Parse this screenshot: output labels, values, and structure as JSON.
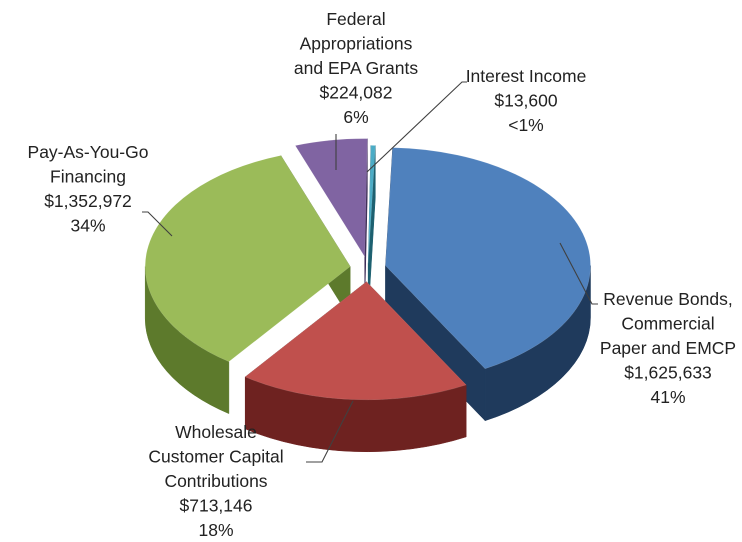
{
  "chart_data": {
    "type": "pie",
    "title": "",
    "style": "3d-exploded",
    "series": [
      {
        "values": [
          1625633,
          713146,
          1352972,
          224082,
          13600
        ],
        "colors": [
          "#4f81bd",
          "#c0504d",
          "#9bbb59",
          "#8064a2",
          "#4bacc6"
        ]
      }
    ],
    "slices": [
      {
        "label_lines": [
          "Revenue Bonds,",
          "Commercial",
          "Paper and EMCP"
        ],
        "value": 1625633,
        "value_text": "$1,625,633",
        "percent_text": "41%",
        "color": "#4f81bd",
        "side_color": "#1f3a5c"
      },
      {
        "label_lines": [
          "Wholesale",
          "Customer Capital",
          "Contributions"
        ],
        "value": 713146,
        "value_text": "$713,146",
        "percent_text": "18%",
        "color": "#c0504d",
        "side_color": "#6e2220"
      },
      {
        "label_lines": [
          "Pay-As-You-Go",
          "Financing"
        ],
        "value": 1352972,
        "value_text": "$1,352,972",
        "percent_text": "34%",
        "color": "#9bbb59",
        "side_color": "#5d7a2c"
      },
      {
        "label_lines": [
          "Federal",
          "Appropriations",
          "and EPA Grants"
        ],
        "value": 224082,
        "value_text": "$224,082",
        "percent_text": "6%",
        "color": "#8064a2",
        "side_color": "#3b2a55"
      },
      {
        "label_lines": [
          "Interest Income"
        ],
        "value": 13600,
        "value_text": "$13,600",
        "percent_text": "<1%",
        "color": "#4bacc6",
        "side_color": "#1d6070"
      }
    ]
  }
}
